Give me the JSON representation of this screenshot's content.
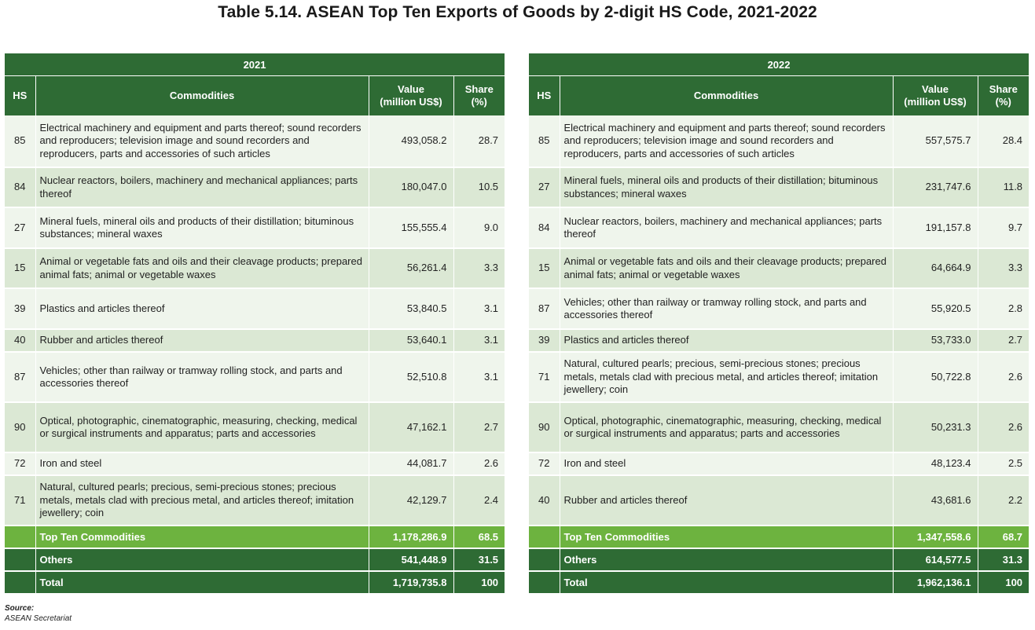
{
  "title": "Table 5.14. ASEAN Top Ten Exports of Goods by 2-digit HS Code, 2021-2022",
  "columns": {
    "hs": "HS",
    "commodities": "Commodities",
    "value_l1": "Value",
    "value_l2": "(million US$)",
    "share_l1": "Share",
    "share_l2": "(%)"
  },
  "tables": [
    {
      "year": "2021",
      "rows": [
        {
          "hs": "85",
          "commodity": "Electrical machinery and equipment and parts thereof; sound recorders and reproducers; television image and sound recorders and reproducers, parts and accessories of such articles",
          "value": "493,058.2",
          "share": "28.7"
        },
        {
          "hs": "84",
          "commodity": "Nuclear reactors, boilers, machinery and mechanical appliances; parts thereof",
          "value": "180,047.0",
          "share": "10.5"
        },
        {
          "hs": "27",
          "commodity": "Mineral fuels, mineral oils and products of their distillation; bituminous substances; mineral waxes",
          "value": "155,555.4",
          "share": "9.0"
        },
        {
          "hs": "15",
          "commodity": "Animal or vegetable fats and oils and their cleavage products; prepared animal fats; animal or vegetable waxes",
          "value": "56,261.4",
          "share": "3.3"
        },
        {
          "hs": "39",
          "commodity": "Plastics and articles thereof",
          "value": "53,840.5",
          "share": "3.1"
        },
        {
          "hs": "40",
          "commodity": "Rubber and articles thereof",
          "value": "53,640.1",
          "share": "3.1"
        },
        {
          "hs": "87",
          "commodity": "Vehicles; other than railway or tramway rolling stock, and parts and accessories thereof",
          "value": "52,510.8",
          "share": "3.1"
        },
        {
          "hs": "90",
          "commodity": "Optical, photographic, cinematographic, measuring, checking, medical or surgical instruments and apparatus; parts and accessories",
          "value": "47,162.1",
          "share": "2.7"
        },
        {
          "hs": "72",
          "commodity": "Iron and steel",
          "value": "44,081.7",
          "share": "2.6"
        },
        {
          "hs": "71",
          "commodity": "Natural, cultured pearls; precious, semi-precious stones; precious metals, metals clad with precious metal, and articles thereof; imitation jewellery; coin",
          "value": "42,129.7",
          "share": "2.4"
        }
      ],
      "top_ten": {
        "label": "Top Ten Commodities",
        "value": "1,178,286.9",
        "share": "68.5"
      },
      "others": {
        "label": "Others",
        "value": "541,448.9",
        "share": "31.5"
      },
      "total": {
        "label": "Total",
        "value": "1,719,735.8",
        "share": "100"
      }
    },
    {
      "year": "2022",
      "rows": [
        {
          "hs": "85",
          "commodity": "Electrical machinery and equipment and parts thereof; sound recorders and reproducers; television image and sound recorders and reproducers, parts and accessories of such articles",
          "value": "557,575.7",
          "share": "28.4"
        },
        {
          "hs": "27",
          "commodity": "Mineral fuels, mineral oils and products of their distillation; bituminous substances; mineral waxes",
          "value": "231,747.6",
          "share": "11.8"
        },
        {
          "hs": "84",
          "commodity": "Nuclear reactors, boilers, machinery and mechanical appliances; parts thereof",
          "value": "191,157.8",
          "share": "9.7"
        },
        {
          "hs": "15",
          "commodity": "Animal or vegetable fats and oils and their cleavage products; prepared animal fats; animal or vegetable waxes",
          "value": "64,664.9",
          "share": "3.3"
        },
        {
          "hs": "87",
          "commodity": "Vehicles; other than railway or tramway rolling stock, and parts and accessories thereof",
          "value": "55,920.5",
          "share": "2.8"
        },
        {
          "hs": "39",
          "commodity": "Plastics and articles thereof",
          "value": "53,733.0",
          "share": "2.7"
        },
        {
          "hs": "71",
          "commodity": "Natural, cultured pearls; precious, semi-precious stones; precious metals, metals clad with precious metal, and articles thereof; imitation jewellery; coin",
          "value": "50,722.8",
          "share": "2.6"
        },
        {
          "hs": "90",
          "commodity": "Optical, photographic, cinematographic, measuring, checking, medical or surgical instruments and apparatus; parts and accessories",
          "value": "50,231.3",
          "share": "2.6"
        },
        {
          "hs": "72",
          "commodity": "Iron and steel",
          "value": "48,123.4",
          "share": "2.5"
        },
        {
          "hs": "40",
          "commodity": "Rubber and articles thereof",
          "value": "43,681.6",
          "share": "2.2"
        }
      ],
      "top_ten": {
        "label": "Top Ten Commodities",
        "value": "1,347,558.6",
        "share": "68.7"
      },
      "others": {
        "label": "Others",
        "value": "614,577.5",
        "share": "31.3"
      },
      "total": {
        "label": "Total",
        "value": "1,962,136.1",
        "share": "100"
      }
    }
  ],
  "source": {
    "label": "Source:",
    "text": "ASEAN Secretariat"
  }
}
